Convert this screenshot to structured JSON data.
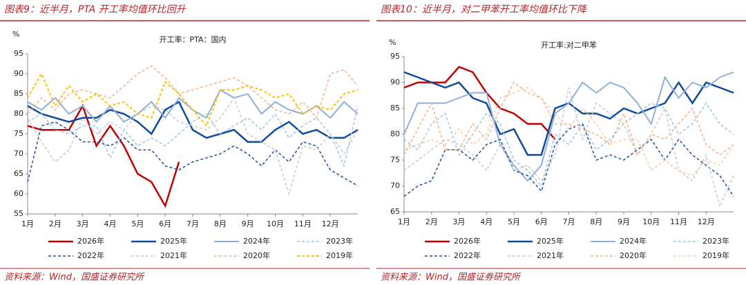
{
  "chart_data": [
    {
      "type": "line",
      "figure_title": "图表9：近半月，PTA 开工率均值环比回升",
      "title": "开工率：PTA：国内",
      "y_unit": "%",
      "source": "资料来源：Wind，国盛证券研究所",
      "xlim": [
        1,
        13
      ],
      "ylim": [
        55,
        95
      ],
      "yticks": [
        55,
        60,
        65,
        70,
        75,
        80,
        85,
        90,
        95
      ],
      "xticks": [
        {
          "value": 1,
          "label": "1月"
        },
        {
          "value": 2,
          "label": "2月"
        },
        {
          "value": 3,
          "label": "3月"
        },
        {
          "value": 4,
          "label": "4月"
        },
        {
          "value": 5,
          "label": "5月"
        },
        {
          "value": 6,
          "label": "6月"
        },
        {
          "value": 7,
          "label": "7月"
        },
        {
          "value": 8,
          "label": "8月"
        },
        {
          "value": 9,
          "label": "9月"
        },
        {
          "value": 10,
          "label": "10月"
        },
        {
          "value": 11,
          "label": "11月"
        },
        {
          "value": 12,
          "label": "12月"
        }
      ],
      "x": [
        1,
        1.5,
        2,
        2.5,
        3,
        3.5,
        4,
        4.5,
        5,
        5.5,
        6,
        6.5,
        7,
        7.5,
        8,
        8.5,
        9,
        9.5,
        10,
        10.5,
        11,
        11.5,
        12,
        12.5,
        13
      ],
      "series": [
        {
          "name": "2026年",
          "color": "#c00000",
          "width": 2.5,
          "dash": false,
          "values": [
            77,
            76,
            76,
            76,
            82,
            72,
            77,
            72,
            65,
            63,
            57,
            68,
            null,
            null,
            null,
            null,
            null,
            null,
            null,
            null,
            null,
            null,
            null,
            null,
            null
          ]
        },
        {
          "name": "2025年",
          "color": "#0d4a9e",
          "width": 2.5,
          "dash": false,
          "values": [
            82,
            80,
            79,
            78,
            79,
            79,
            81,
            80,
            78,
            75,
            81,
            83,
            76,
            74,
            75,
            76,
            73,
            73,
            76,
            78,
            75,
            76,
            74,
            74,
            76
          ]
        },
        {
          "name": "2024年",
          "color": "#8eaedb",
          "width": 2,
          "dash": false,
          "values": [
            83,
            81,
            84,
            80,
            82,
            78,
            82,
            78,
            80,
            83,
            79,
            84,
            81,
            79,
            86,
            84,
            85,
            80,
            83,
            81,
            80,
            82,
            79,
            83,
            80
          ]
        },
        {
          "name": "2023年",
          "color": "#9dc3e6",
          "width": 1.5,
          "dash": true,
          "values": [
            78,
            80,
            76,
            75,
            77,
            77,
            69,
            76,
            72,
            74,
            72,
            75,
            78,
            80,
            75,
            77,
            79,
            76,
            80,
            74,
            77,
            79,
            75,
            67,
            82
          ]
        },
        {
          "name": "2022年",
          "color": "#1f4e9a",
          "width": 1.5,
          "dash": true,
          "values": [
            63,
            77,
            78,
            76,
            73,
            73,
            72,
            74,
            71,
            71,
            67,
            66,
            68,
            69,
            70,
            72,
            70,
            67,
            71,
            68,
            73,
            72,
            66,
            64,
            62
          ]
        },
        {
          "name": "2021年",
          "color": "#c9c9c9",
          "width": 1.5,
          "dash": true,
          "values": [
            79,
            73,
            68,
            71,
            79,
            75,
            78,
            76,
            80,
            82,
            81,
            78,
            77,
            76,
            79,
            84,
            75,
            73,
            71,
            60,
            72,
            71,
            75,
            70,
            76
          ]
        },
        {
          "name": "2020年",
          "color": "#f4b183",
          "width": 1.5,
          "dash": true,
          "values": [
            80,
            84,
            81,
            85,
            86,
            85,
            84,
            87,
            90,
            92,
            89,
            85,
            86,
            87,
            88,
            89,
            87,
            84,
            81,
            80,
            83,
            79,
            90,
            91,
            87
          ]
        },
        {
          "name": "2019年",
          "color": "#ffc000",
          "width": 2,
          "dash": true,
          "values": [
            84,
            90,
            82,
            87,
            83,
            85,
            82,
            83,
            80,
            79,
            88,
            85,
            81,
            77,
            86,
            86,
            87,
            86,
            84,
            85,
            80,
            82,
            81,
            85,
            86
          ]
        }
      ]
    },
    {
      "type": "line",
      "figure_title": "图表10：近半月，对二甲苯开工率均值环比下降",
      "title": "开工率:对二甲苯",
      "y_unit": "%",
      "source": "资料来源：Wind，国盛证券研究所",
      "xlim": [
        1,
        13
      ],
      "ylim": [
        65,
        95
      ],
      "yticks": [
        65,
        70,
        75,
        80,
        85,
        90,
        95
      ],
      "xticks": [
        {
          "value": 1,
          "label": "1月"
        },
        {
          "value": 2,
          "label": "2月"
        },
        {
          "value": 3,
          "label": "3月"
        },
        {
          "value": 4,
          "label": "4月"
        },
        {
          "value": 5,
          "label": "5月"
        },
        {
          "value": 6,
          "label": "6月"
        },
        {
          "value": 7,
          "label": "7月"
        },
        {
          "value": 8,
          "label": "8月"
        },
        {
          "value": 9,
          "label": "9月"
        },
        {
          "value": 10,
          "label": "10月"
        },
        {
          "value": 11,
          "label": "11月"
        },
        {
          "value": 12,
          "label": "12月"
        }
      ],
      "x": [
        1,
        1.5,
        2,
        2.5,
        3,
        3.5,
        4,
        4.5,
        5,
        5.5,
        6,
        6.5,
        7,
        7.5,
        8,
        8.5,
        9,
        9.5,
        10,
        10.5,
        11,
        11.5,
        12,
        12.5,
        13
      ],
      "series": [
        {
          "name": "2026年",
          "color": "#c00000",
          "width": 2.5,
          "dash": false,
          "values": [
            89,
            90,
            90,
            90,
            93,
            92,
            88,
            85,
            84,
            82,
            82,
            79,
            null,
            null,
            null,
            null,
            null,
            null,
            null,
            null,
            null,
            null,
            null,
            null,
            null
          ]
        },
        {
          "name": "2025年",
          "color": "#0d4a9e",
          "width": 2.5,
          "dash": false,
          "values": [
            92,
            91,
            90,
            89,
            90,
            87,
            86,
            80,
            81,
            76,
            76,
            85,
            86,
            84,
            84,
            83,
            85,
            84,
            85,
            86,
            90,
            86,
            90,
            89,
            88
          ]
        },
        {
          "name": "2024年",
          "color": "#8eaedb",
          "width": 2,
          "dash": false,
          "values": [
            80,
            86,
            86,
            86,
            87,
            88,
            88,
            78,
            74,
            71,
            74,
            84,
            86,
            90,
            88,
            90,
            89,
            86,
            82,
            91,
            87,
            90,
            89,
            91,
            92
          ]
        },
        {
          "name": "2023年",
          "color": "#9dc3e6",
          "width": 1.5,
          "dash": true,
          "values": [
            79,
            77,
            82,
            84,
            76,
            80,
            84,
            82,
            75,
            73,
            70,
            80,
            78,
            82,
            77,
            79,
            82,
            84,
            86,
            85,
            80,
            82,
            86,
            82,
            80
          ]
        },
        {
          "name": "2022年",
          "color": "#1f4e9a",
          "width": 1.5,
          "dash": true,
          "values": [
            68,
            70,
            71,
            77,
            77,
            75,
            78,
            79,
            73,
            72,
            69,
            78,
            81,
            82,
            75,
            76,
            75,
            77,
            79,
            75,
            79,
            76,
            74,
            72,
            68
          ]
        },
        {
          "name": "2021年",
          "color": "#c9c9c9",
          "width": 1.5,
          "dash": true,
          "values": [
            73,
            75,
            77,
            79,
            78,
            76,
            73,
            78,
            73,
            74,
            71,
            76,
            89,
            79,
            86,
            84,
            82,
            76,
            80,
            85,
            73,
            71,
            76,
            66,
            72
          ]
        },
        {
          "name": "2020年",
          "color": "#f4b183",
          "width": 1.5,
          "dash": true,
          "values": [
            76,
            81,
            86,
            77,
            77,
            82,
            79,
            85,
            90,
            88,
            87,
            82,
            82,
            81,
            80,
            78,
            84,
            76,
            80,
            79,
            82,
            85,
            78,
            76,
            78
          ]
        },
        {
          "name": "2019年",
          "color": "#f8cbad",
          "width": 1.5,
          "dash": true,
          "values": [
            77,
            78,
            79,
            78,
            81,
            78,
            80,
            87,
            88,
            89,
            87,
            84,
            81,
            85,
            82,
            78,
            79,
            79,
            73,
            75,
            73,
            72,
            75,
            74,
            78
          ]
        }
      ]
    }
  ]
}
